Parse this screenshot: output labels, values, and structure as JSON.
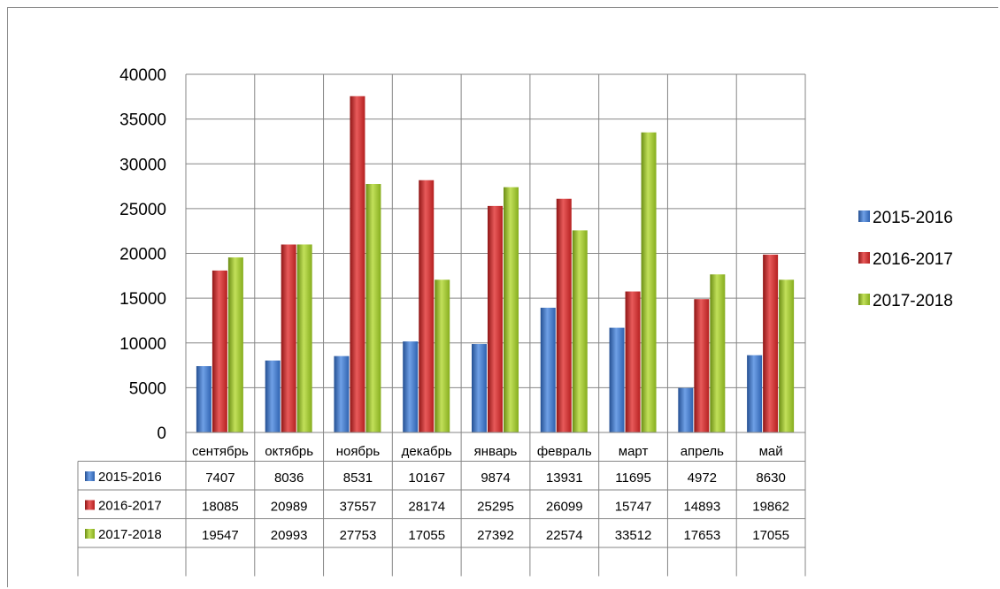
{
  "chart_data": {
    "type": "bar",
    "categories": [
      "сентябрь",
      "октябрь",
      "ноябрь",
      "декабрь",
      "январь",
      "февраль",
      "март",
      "апрель",
      "май"
    ],
    "series": [
      {
        "name": "2015-2016",
        "values": [
          7407,
          8036,
          8531,
          10167,
          9874,
          13931,
          11695,
          4972,
          8630
        ]
      },
      {
        "name": "2016-2017",
        "values": [
          18085,
          20989,
          37557,
          28174,
          25295,
          26099,
          15747,
          14893,
          19862
        ]
      },
      {
        "name": "2017-2018",
        "values": [
          19547,
          20993,
          27753,
          17055,
          27392,
          22574,
          33512,
          17653,
          17055
        ]
      }
    ],
    "ylim": [
      0,
      40000
    ],
    "yticks": [
      0,
      5000,
      10000,
      15000,
      20000,
      25000,
      30000,
      35000,
      40000
    ],
    "grid": true,
    "legend_position": "right",
    "data_table": true,
    "colors": {
      "2015-2016": [
        "#2e62b0",
        "#6fa0e6",
        "#244f92"
      ],
      "2016-2017": [
        "#b52020",
        "#e85a5a",
        "#8f1616"
      ],
      "2017-2018": [
        "#86ad1e",
        "#c2e05a",
        "#6b8d14"
      ],
      "grid": "#868686"
    }
  }
}
